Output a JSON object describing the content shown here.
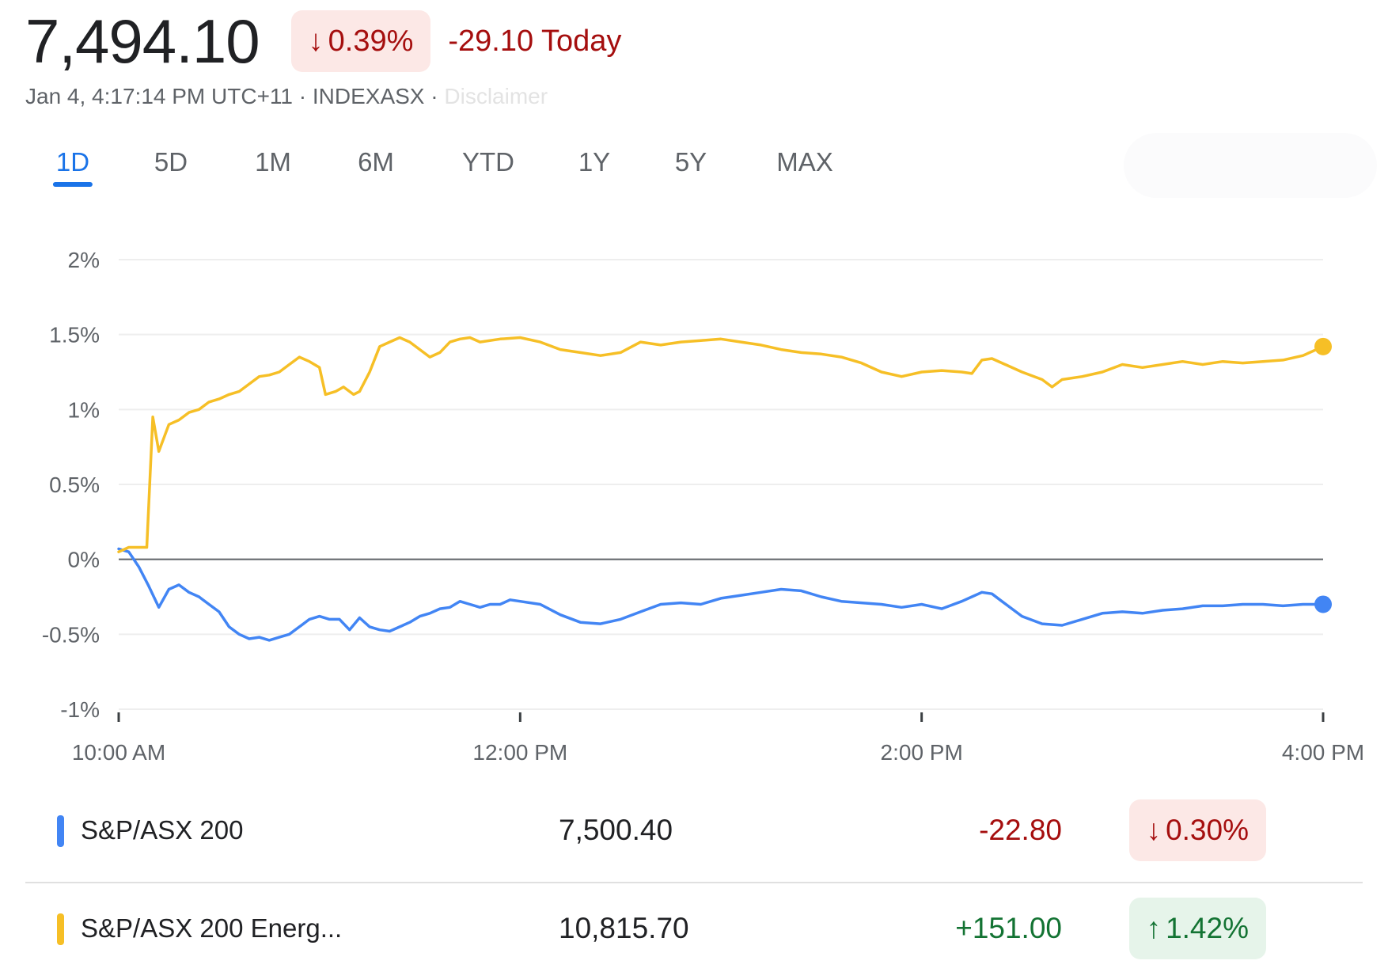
{
  "header": {
    "price": "7,494.10",
    "change_arrow": "↓",
    "change_percent": "0.39%",
    "change_today": "-29.10 Today",
    "subline": "Jan 4, 4:17:14 PM UTC+11 · INDEXASX · ",
    "disclaimer": "Disclaimer"
  },
  "tabs": [
    {
      "label": "1D",
      "active": true
    },
    {
      "label": "5D",
      "active": false
    },
    {
      "label": "1M",
      "active": false
    },
    {
      "label": "6M",
      "active": false
    },
    {
      "label": "YTD",
      "active": false
    },
    {
      "label": "1Y",
      "active": false
    },
    {
      "label": "5Y",
      "active": false
    },
    {
      "label": "MAX",
      "active": false
    }
  ],
  "chart_data": {
    "type": "line",
    "title": "",
    "xlabel": "",
    "ylabel": "",
    "grid": true,
    "legend": "none",
    "x_range_hours": [
      10,
      16
    ],
    "x_ticks": [
      {
        "value": 10,
        "label": "10:00 AM"
      },
      {
        "value": 12,
        "label": "12:00 PM"
      },
      {
        "value": 14,
        "label": "2:00 PM"
      },
      {
        "value": 16,
        "label": "4:00 PM"
      }
    ],
    "ylim": [
      -1,
      2
    ],
    "y_ticks": [
      {
        "value": 2,
        "label": "2%"
      },
      {
        "value": 1.5,
        "label": "1.5%"
      },
      {
        "value": 1,
        "label": "1%"
      },
      {
        "value": 0.5,
        "label": "0.5%"
      },
      {
        "value": 0,
        "label": "0%"
      },
      {
        "value": -0.5,
        "label": "-0.5%"
      },
      {
        "value": -1,
        "label": "-1%"
      }
    ],
    "series": [
      {
        "name": "S&P/ASX 200",
        "color": "#4285f4",
        "points": [
          [
            10.0,
            0.07
          ],
          [
            10.05,
            0.05
          ],
          [
            10.1,
            -0.05
          ],
          [
            10.15,
            -0.18
          ],
          [
            10.2,
            -0.32
          ],
          [
            10.25,
            -0.2
          ],
          [
            10.3,
            -0.17
          ],
          [
            10.35,
            -0.22
          ],
          [
            10.4,
            -0.25
          ],
          [
            10.45,
            -0.3
          ],
          [
            10.5,
            -0.35
          ],
          [
            10.55,
            -0.45
          ],
          [
            10.6,
            -0.5
          ],
          [
            10.65,
            -0.53
          ],
          [
            10.7,
            -0.52
          ],
          [
            10.75,
            -0.54
          ],
          [
            10.8,
            -0.52
          ],
          [
            10.85,
            -0.5
          ],
          [
            10.9,
            -0.45
          ],
          [
            10.95,
            -0.4
          ],
          [
            11.0,
            -0.38
          ],
          [
            11.05,
            -0.4
          ],
          [
            11.1,
            -0.4
          ],
          [
            11.15,
            -0.47
          ],
          [
            11.2,
            -0.39
          ],
          [
            11.25,
            -0.45
          ],
          [
            11.3,
            -0.47
          ],
          [
            11.35,
            -0.48
          ],
          [
            11.4,
            -0.45
          ],
          [
            11.45,
            -0.42
          ],
          [
            11.5,
            -0.38
          ],
          [
            11.55,
            -0.36
          ],
          [
            11.6,
            -0.33
          ],
          [
            11.65,
            -0.32
          ],
          [
            11.7,
            -0.28
          ],
          [
            11.75,
            -0.3
          ],
          [
            11.8,
            -0.32
          ],
          [
            11.85,
            -0.3
          ],
          [
            11.9,
            -0.3
          ],
          [
            11.95,
            -0.27
          ],
          [
            12.0,
            -0.28
          ],
          [
            12.1,
            -0.3
          ],
          [
            12.2,
            -0.37
          ],
          [
            12.3,
            -0.42
          ],
          [
            12.4,
            -0.43
          ],
          [
            12.5,
            -0.4
          ],
          [
            12.6,
            -0.35
          ],
          [
            12.7,
            -0.3
          ],
          [
            12.8,
            -0.29
          ],
          [
            12.9,
            -0.3
          ],
          [
            13.0,
            -0.26
          ],
          [
            13.1,
            -0.24
          ],
          [
            13.2,
            -0.22
          ],
          [
            13.3,
            -0.2
          ],
          [
            13.4,
            -0.21
          ],
          [
            13.5,
            -0.25
          ],
          [
            13.6,
            -0.28
          ],
          [
            13.7,
            -0.29
          ],
          [
            13.8,
            -0.3
          ],
          [
            13.9,
            -0.32
          ],
          [
            14.0,
            -0.3
          ],
          [
            14.1,
            -0.33
          ],
          [
            14.2,
            -0.28
          ],
          [
            14.25,
            -0.25
          ],
          [
            14.3,
            -0.22
          ],
          [
            14.35,
            -0.23
          ],
          [
            14.4,
            -0.28
          ],
          [
            14.5,
            -0.38
          ],
          [
            14.6,
            -0.43
          ],
          [
            14.7,
            -0.44
          ],
          [
            14.8,
            -0.4
          ],
          [
            14.9,
            -0.36
          ],
          [
            15.0,
            -0.35
          ],
          [
            15.1,
            -0.36
          ],
          [
            15.2,
            -0.34
          ],
          [
            15.3,
            -0.33
          ],
          [
            15.4,
            -0.31
          ],
          [
            15.5,
            -0.31
          ],
          [
            15.6,
            -0.3
          ],
          [
            15.7,
            -0.3
          ],
          [
            15.8,
            -0.31
          ],
          [
            15.9,
            -0.3
          ],
          [
            16.0,
            -0.3
          ]
        ]
      },
      {
        "name": "S&P/ASX 200 Energ...",
        "color": "#f6bf26",
        "points": [
          [
            10.0,
            0.05
          ],
          [
            10.05,
            0.08
          ],
          [
            10.1,
            0.08
          ],
          [
            10.14,
            0.08
          ],
          [
            10.17,
            0.95
          ],
          [
            10.2,
            0.72
          ],
          [
            10.25,
            0.9
          ],
          [
            10.3,
            0.93
          ],
          [
            10.35,
            0.98
          ],
          [
            10.4,
            1.0
          ],
          [
            10.45,
            1.05
          ],
          [
            10.5,
            1.07
          ],
          [
            10.55,
            1.1
          ],
          [
            10.6,
            1.12
          ],
          [
            10.65,
            1.17
          ],
          [
            10.7,
            1.22
          ],
          [
            10.75,
            1.23
          ],
          [
            10.8,
            1.25
          ],
          [
            10.85,
            1.3
          ],
          [
            10.9,
            1.35
          ],
          [
            10.95,
            1.32
          ],
          [
            11.0,
            1.28
          ],
          [
            11.03,
            1.1
          ],
          [
            11.08,
            1.12
          ],
          [
            11.12,
            1.15
          ],
          [
            11.17,
            1.1
          ],
          [
            11.2,
            1.12
          ],
          [
            11.25,
            1.25
          ],
          [
            11.3,
            1.42
          ],
          [
            11.35,
            1.45
          ],
          [
            11.4,
            1.48
          ],
          [
            11.45,
            1.45
          ],
          [
            11.5,
            1.4
          ],
          [
            11.55,
            1.35
          ],
          [
            11.6,
            1.38
          ],
          [
            11.65,
            1.45
          ],
          [
            11.7,
            1.47
          ],
          [
            11.75,
            1.48
          ],
          [
            11.8,
            1.45
          ],
          [
            11.9,
            1.47
          ],
          [
            12.0,
            1.48
          ],
          [
            12.1,
            1.45
          ],
          [
            12.2,
            1.4
          ],
          [
            12.3,
            1.38
          ],
          [
            12.4,
            1.36
          ],
          [
            12.5,
            1.38
          ],
          [
            12.6,
            1.45
          ],
          [
            12.7,
            1.43
          ],
          [
            12.8,
            1.45
          ],
          [
            12.9,
            1.46
          ],
          [
            13.0,
            1.47
          ],
          [
            13.1,
            1.45
          ],
          [
            13.2,
            1.43
          ],
          [
            13.3,
            1.4
          ],
          [
            13.4,
            1.38
          ],
          [
            13.5,
            1.37
          ],
          [
            13.6,
            1.35
          ],
          [
            13.7,
            1.31
          ],
          [
            13.8,
            1.25
          ],
          [
            13.9,
            1.22
          ],
          [
            14.0,
            1.25
          ],
          [
            14.1,
            1.26
          ],
          [
            14.2,
            1.25
          ],
          [
            14.25,
            1.24
          ],
          [
            14.3,
            1.33
          ],
          [
            14.35,
            1.34
          ],
          [
            14.4,
            1.31
          ],
          [
            14.5,
            1.25
          ],
          [
            14.6,
            1.2
          ],
          [
            14.65,
            1.15
          ],
          [
            14.7,
            1.2
          ],
          [
            14.8,
            1.22
          ],
          [
            14.9,
            1.25
          ],
          [
            15.0,
            1.3
          ],
          [
            15.1,
            1.28
          ],
          [
            15.2,
            1.3
          ],
          [
            15.3,
            1.32
          ],
          [
            15.4,
            1.3
          ],
          [
            15.5,
            1.32
          ],
          [
            15.6,
            1.31
          ],
          [
            15.7,
            1.32
          ],
          [
            15.8,
            1.33
          ],
          [
            15.9,
            1.36
          ],
          [
            16.0,
            1.42
          ]
        ]
      }
    ]
  },
  "rows": [
    {
      "name": "S&P/ASX 200",
      "color": "#4285f4",
      "value": "7,500.40",
      "delta": "-22.80",
      "arrow": "↓",
      "percent": "0.30%"
    },
    {
      "name": "S&P/ASX 200 Energ...",
      "color": "#f6bf26",
      "value": "10,815.70",
      "delta": "+151.00",
      "arrow": "↑",
      "percent": "1.42%"
    }
  ]
}
